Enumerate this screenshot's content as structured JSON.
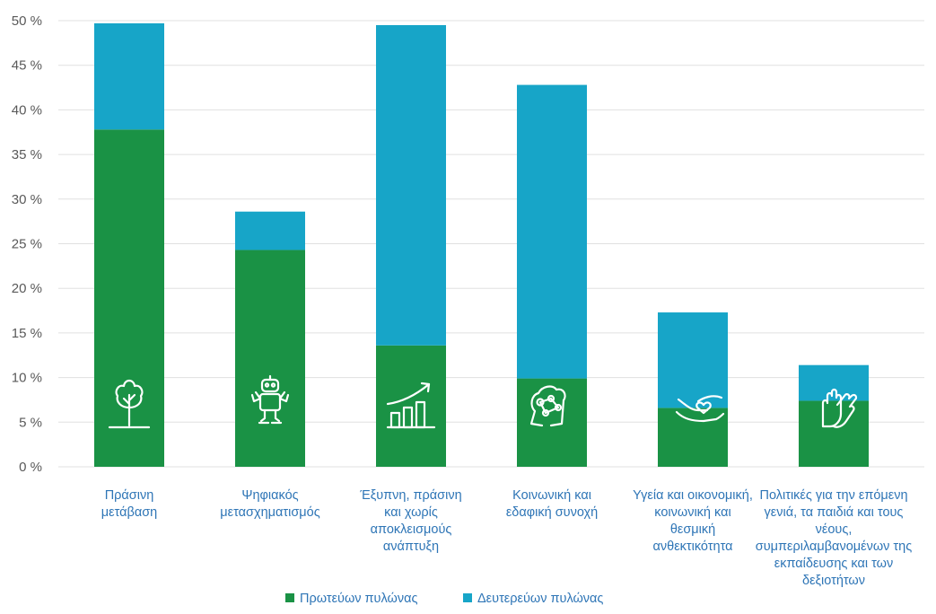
{
  "chart_data": {
    "type": "bar",
    "stacked": true,
    "categories": [
      "Πράσινη μετάβαση",
      "Ψηφιακός μετασχηματισμός",
      "Έξυπνη, πράσινη και χωρίς αποκλεισμούς ανάπτυξη",
      "Κοινωνική και εδαφική συνοχή",
      "Υγεία και οικονομική, κοινωνική και θεσμική ανθεκτικότητα",
      "Πολιτικές για την επόμενη γενιά, τα παιδιά και τους νέους, συμπεριλαμβανομένων της εκπαίδευσης και των δεξιοτήτων"
    ],
    "category_lines": [
      [
        "Πράσινη",
        "μετάβαση"
      ],
      [
        "Ψηφιακός",
        "μετασχηματισμός"
      ],
      [
        "Έξυπνη, πράσινη",
        "και χωρίς",
        "αποκλεισμούς",
        "ανάπτυξη"
      ],
      [
        "Κοινωνική και",
        "εδαφική συνοχή"
      ],
      [
        "Υγεία και οικονομική,",
        "κοινωνική και",
        "θεσμική",
        "ανθεκτικότητα"
      ],
      [
        "Πολιτικές για την επόμενη",
        "γενιά, τα παιδιά και τους",
        "νέους,",
        "συμπεριλαμβανομένων της",
        "εκπαίδευσης και των",
        "δεξιοτήτων"
      ]
    ],
    "series": [
      {
        "name": "Πρωτεύων πυλώνας",
        "color": "#1a9245",
        "values": [
          37.8,
          24.3,
          13.6,
          9.9,
          6.6,
          7.4
        ]
      },
      {
        "name": "Δευτερεύων πυλώνας",
        "color": "#17a5c8",
        "values": [
          11.9,
          4.3,
          35.9,
          32.9,
          10.7,
          4.0
        ]
      }
    ],
    "yticks": [
      "0 %",
      "5 %",
      "10 %",
      "15 %",
      "20 %",
      "25 %",
      "30 %",
      "35 %",
      "40 %",
      "45 %",
      "50 %"
    ],
    "ylim": [
      0,
      50
    ],
    "grid": true,
    "legend_position": "bottom",
    "icons": [
      "tree-icon",
      "robot-icon",
      "growth-chart-icon",
      "community-icon",
      "caring-hands-icon",
      "hands-icon"
    ]
  },
  "colors": {
    "primary": "#1a9245",
    "secondary": "#17a5c8",
    "label_text": "#2e75b6",
    "axis_text": "#595959",
    "grid": "#e0e0e0"
  }
}
